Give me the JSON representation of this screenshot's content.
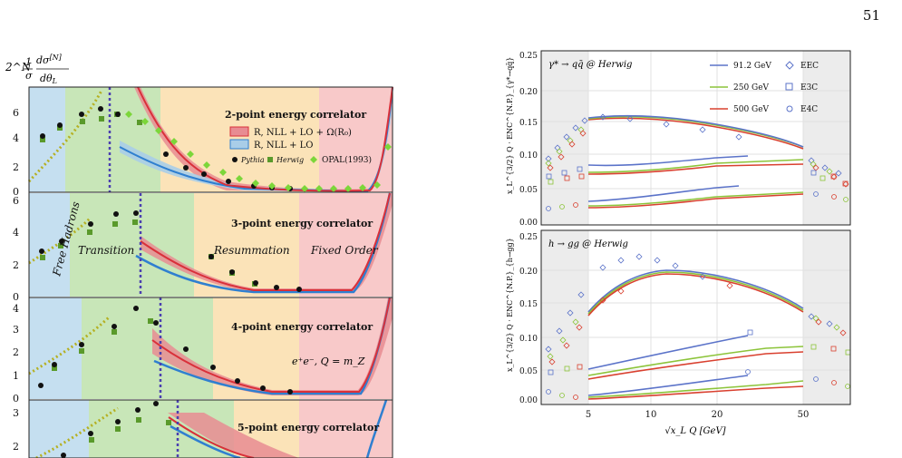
{
  "page_number": "51",
  "left_figure": {
    "y_label_main": "2^N",
    "y_label_fraction": "1/σ dσ^[N]/dθ_L",
    "panel_labels": [
      "2-point energy correlator",
      "3-point energy correlator",
      "4-point energy correlator",
      "5-point energy correlator"
    ],
    "legend": {
      "band_full": "R, NLL + LO + Ω(R₀)",
      "band_lo": "R, NLL + LO",
      "pythia": "Pythia",
      "herwig": "Herwig",
      "opal": "OPAL(1993)"
    },
    "regions": [
      "Free Hadrons",
      "Transition",
      "Resummation",
      "Fixed Order"
    ],
    "kinematics": "e⁺e⁻, Q = m_Z",
    "panel_ticks": [
      [
        "0",
        "2",
        "4",
        "6"
      ],
      [
        "0",
        "2",
        "4",
        "6"
      ],
      [
        "0",
        "1",
        "2",
        "3",
        "4"
      ],
      [
        "2",
        "3"
      ]
    ],
    "colors": {
      "free": "#c5dff0",
      "transition": "#c8e6b8",
      "resummation": "#fbe3b8",
      "fixed": "#f8c9c9",
      "band_red": "#d9303a",
      "band_blue": "#2f7fd0",
      "herwig": "#5a9a2b",
      "opal": "#7cd63a",
      "olive": "#b5b022",
      "purple": "#4b3fb0"
    }
  },
  "right_figure": {
    "panel_top_title": "γ* → qq̄ @ Herwig",
    "panel_bottom_title": "h → gg @ Herwig",
    "y_label_top": "x_L^{3/2} Q · ENC^{N.P.}_{γ*→qq̄}",
    "y_label_bottom": "x_L^{3/2} Q · ENC^{N.P.}_{h→gg}",
    "x_label": "√x_L Q   [GeV]",
    "x_ticks": [
      "5",
      "10",
      "20",
      "50"
    ],
    "y_ticks": [
      "0.00",
      "0.05",
      "0.10",
      "0.15",
      "0.20",
      "0.25"
    ],
    "legend_energies": [
      "91.2 GeV",
      "250 GeV",
      "500 GeV"
    ],
    "legend_correlators": [
      "EEC",
      "E3C",
      "E4C"
    ],
    "colors": {
      "e91": "#5b73c9",
      "e250": "#8cc43a",
      "e500": "#d9402f",
      "grey": "#ececec"
    }
  }
}
